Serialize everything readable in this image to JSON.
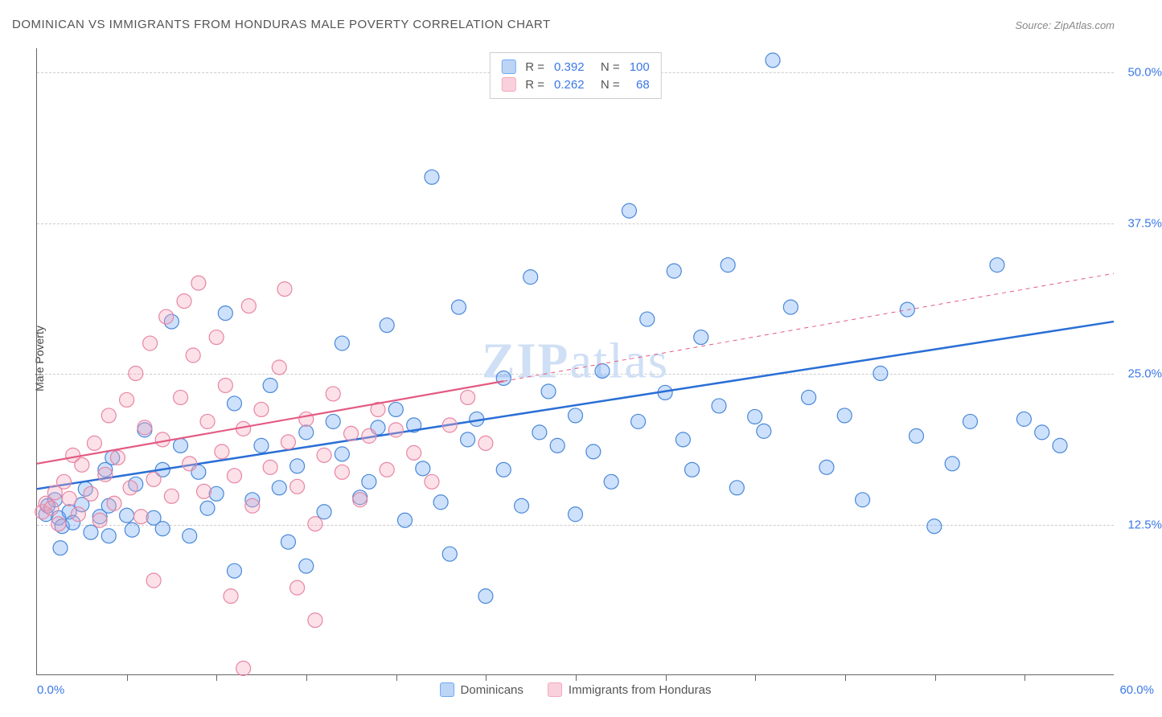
{
  "title": "DOMINICAN VS IMMIGRANTS FROM HONDURAS MALE POVERTY CORRELATION CHART",
  "source": "Source: ZipAtlas.com",
  "y_axis_label": "Male Poverty",
  "watermark": "ZIPatlas",
  "chart": {
    "type": "scatter",
    "xlim": [
      0,
      60
    ],
    "ylim": [
      0,
      52
    ],
    "x_min_label": "0.0%",
    "x_max_label": "60.0%",
    "y_ticks": [
      12.5,
      25.0,
      37.5,
      50.0
    ],
    "y_tick_labels": [
      "12.5%",
      "25.0%",
      "37.5%",
      "50.0%"
    ],
    "x_tick_positions": [
      5,
      10,
      15,
      20,
      25,
      30,
      35,
      40,
      45,
      50,
      55
    ],
    "background_color": "#ffffff",
    "grid_color": "#cccccc",
    "marker_radius": 9,
    "marker_fill_opacity": 0.35,
    "marker_stroke_width": 1.2,
    "series": [
      {
        "name": "Dominicans",
        "color": "#6fa8f5",
        "stroke": "#4a88d8",
        "r": 0.392,
        "n": 100,
        "trend": {
          "x1": 0,
          "y1": 15.4,
          "x2": 60,
          "y2": 29.3,
          "solid_until_x": 60,
          "color": "#2a6fd6",
          "width": 2.5
        },
        "points": [
          [
            0.5,
            13.3
          ],
          [
            0.6,
            14
          ],
          [
            1,
            14.5
          ],
          [
            1.2,
            13
          ],
          [
            1.3,
            10.5
          ],
          [
            1.4,
            12.3
          ],
          [
            1.8,
            13.5
          ],
          [
            2,
            12.6
          ],
          [
            2.5,
            14.1
          ],
          [
            2.7,
            15.4
          ],
          [
            3,
            11.8
          ],
          [
            3.5,
            13.1
          ],
          [
            3.8,
            17
          ],
          [
            4,
            11.5
          ],
          [
            4,
            14
          ],
          [
            4.2,
            18
          ],
          [
            5,
            13.2
          ],
          [
            5.3,
            12
          ],
          [
            5.5,
            15.8
          ],
          [
            6,
            20.3
          ],
          [
            6.5,
            13
          ],
          [
            7,
            12.1
          ],
          [
            7,
            17
          ],
          [
            7.5,
            29.3
          ],
          [
            8,
            19
          ],
          [
            8.5,
            11.5
          ],
          [
            9,
            16.8
          ],
          [
            9.5,
            13.8
          ],
          [
            10,
            15
          ],
          [
            10.5,
            30
          ],
          [
            11,
            8.6
          ],
          [
            11,
            22.5
          ],
          [
            12,
            14.5
          ],
          [
            12.5,
            19
          ],
          [
            13,
            24
          ],
          [
            13.5,
            15.5
          ],
          [
            14,
            11
          ],
          [
            14.5,
            17.3
          ],
          [
            15,
            20.1
          ],
          [
            15,
            9
          ],
          [
            16,
            13.5
          ],
          [
            16.5,
            21
          ],
          [
            17,
            18.3
          ],
          [
            17,
            27.5
          ],
          [
            18,
            14.7
          ],
          [
            18.5,
            16
          ],
          [
            19,
            20.5
          ],
          [
            19.5,
            29
          ],
          [
            20,
            22
          ],
          [
            20.5,
            12.8
          ],
          [
            21,
            20.7
          ],
          [
            21.5,
            17.1
          ],
          [
            22,
            41.3
          ],
          [
            22.5,
            14.3
          ],
          [
            23,
            10
          ],
          [
            23.5,
            30.5
          ],
          [
            24,
            19.5
          ],
          [
            24.5,
            21.2
          ],
          [
            25,
            6.5
          ],
          [
            26,
            17
          ],
          [
            26,
            24.6
          ],
          [
            27,
            14
          ],
          [
            27.5,
            33
          ],
          [
            28,
            20.1
          ],
          [
            28.5,
            23.5
          ],
          [
            29,
            19
          ],
          [
            30,
            21.5
          ],
          [
            30,
            13.3
          ],
          [
            31,
            18.5
          ],
          [
            31.5,
            25.2
          ],
          [
            32,
            16
          ],
          [
            33,
            38.5
          ],
          [
            33.5,
            21
          ],
          [
            34,
            29.5
          ],
          [
            35,
            23.4
          ],
          [
            35.5,
            33.5
          ],
          [
            36,
            19.5
          ],
          [
            36.5,
            17
          ],
          [
            37,
            28
          ],
          [
            38,
            22.3
          ],
          [
            38.5,
            34
          ],
          [
            39,
            15.5
          ],
          [
            40,
            21.4
          ],
          [
            40.5,
            20.2
          ],
          [
            41,
            51
          ],
          [
            42,
            30.5
          ],
          [
            43,
            23
          ],
          [
            44,
            17.2
          ],
          [
            45,
            21.5
          ],
          [
            46,
            14.5
          ],
          [
            47,
            25
          ],
          [
            48.5,
            30.3
          ],
          [
            49,
            19.8
          ],
          [
            50,
            12.3
          ],
          [
            51,
            17.5
          ],
          [
            52,
            21
          ],
          [
            53.5,
            34
          ],
          [
            55,
            21.2
          ],
          [
            56,
            20.1
          ],
          [
            57,
            19
          ]
        ]
      },
      {
        "name": "Immigrants from Honduras",
        "color": "#f5a8bd",
        "stroke": "#e786a3",
        "r": 0.262,
        "n": 68,
        "trend": {
          "x1": 0,
          "y1": 17.5,
          "x2": 60,
          "y2": 33.3,
          "solid_until_x": 26,
          "color": "#e35a82",
          "width": 2.2
        },
        "points": [
          [
            0.3,
            13.5
          ],
          [
            0.5,
            14.2
          ],
          [
            0.8,
            13.8
          ],
          [
            1,
            15.1
          ],
          [
            1.2,
            12.5
          ],
          [
            1.5,
            16
          ],
          [
            1.8,
            14.6
          ],
          [
            2,
            18.2
          ],
          [
            2.3,
            13.3
          ],
          [
            2.5,
            17.4
          ],
          [
            3,
            15
          ],
          [
            3.2,
            19.2
          ],
          [
            3.5,
            12.8
          ],
          [
            3.8,
            16.6
          ],
          [
            4,
            21.5
          ],
          [
            4.3,
            14.2
          ],
          [
            4.5,
            18
          ],
          [
            5,
            22.8
          ],
          [
            5.2,
            15.5
          ],
          [
            5.5,
            25
          ],
          [
            5.8,
            13.1
          ],
          [
            6,
            20.5
          ],
          [
            6.3,
            27.5
          ],
          [
            6.5,
            16.2
          ],
          [
            7,
            19.5
          ],
          [
            7.2,
            29.7
          ],
          [
            7.5,
            14.8
          ],
          [
            8,
            23
          ],
          [
            8.2,
            31
          ],
          [
            8.5,
            17.5
          ],
          [
            8.7,
            26.5
          ],
          [
            9,
            32.5
          ],
          [
            9.3,
            15.2
          ],
          [
            9.5,
            21
          ],
          [
            10,
            28
          ],
          [
            10.3,
            18.5
          ],
          [
            10.5,
            24
          ],
          [
            11,
            16.5
          ],
          [
            11.5,
            20.4
          ],
          [
            11.8,
            30.6
          ],
          [
            12,
            14
          ],
          [
            12.5,
            22
          ],
          [
            13,
            17.2
          ],
          [
            13.5,
            25.5
          ],
          [
            13.8,
            32
          ],
          [
            14,
            19.3
          ],
          [
            14.5,
            15.6
          ],
          [
            15,
            21.2
          ],
          [
            15.5,
            12.5
          ],
          [
            16,
            18.2
          ],
          [
            16.5,
            23.3
          ],
          [
            17,
            16.8
          ],
          [
            17.5,
            20
          ],
          [
            18,
            14.5
          ],
          [
            18.5,
            19.8
          ],
          [
            19,
            22
          ],
          [
            19.5,
            17
          ],
          [
            20,
            20.3
          ],
          [
            21,
            18.4
          ],
          [
            22,
            16
          ],
          [
            23,
            20.7
          ],
          [
            24,
            23
          ],
          [
            25,
            19.2
          ],
          [
            10.8,
            6.5
          ],
          [
            11.5,
            0.5
          ],
          [
            14.5,
            7.2
          ],
          [
            15.5,
            4.5
          ],
          [
            6.5,
            7.8
          ]
        ]
      }
    ]
  },
  "legend_top": [
    {
      "swatch_fill": "#bcd5f5",
      "swatch_border": "#6fa8f5",
      "r_label": "R =",
      "r_val": "0.392",
      "n_label": "N =",
      "n_val": "100"
    },
    {
      "swatch_fill": "#f8d1dc",
      "swatch_border": "#f5a8bd",
      "r_label": "R =",
      "r_val": "0.262",
      "n_label": "N =",
      "n_val": "  68"
    }
  ],
  "legend_bottom": [
    {
      "swatch_fill": "#bcd5f5",
      "swatch_border": "#6fa8f5",
      "label": "Dominicans"
    },
    {
      "swatch_fill": "#f8d1dc",
      "swatch_border": "#f5a8bd",
      "label": "Immigrants from Honduras"
    }
  ]
}
